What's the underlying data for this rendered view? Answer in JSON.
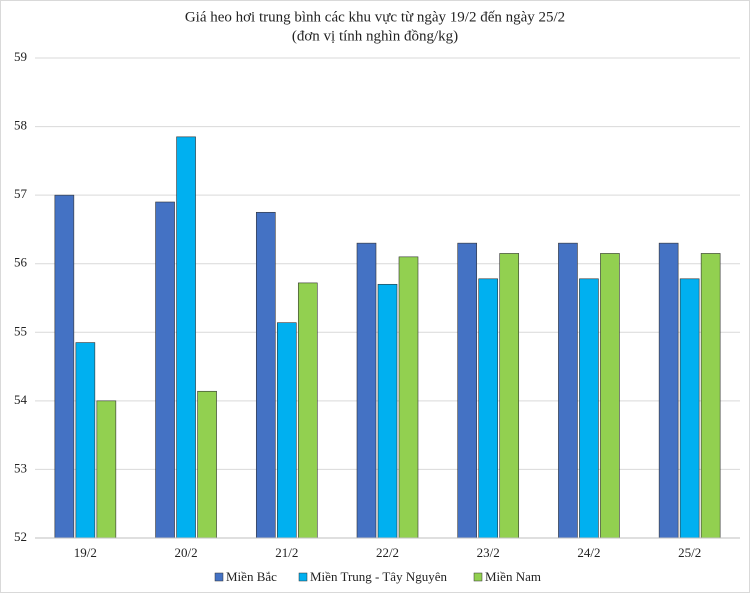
{
  "chart_data": {
    "type": "bar",
    "title": "Giá heo hơi trung bình các khu vực từ ngày 19/2 đến ngày 25/2",
    "subtitle": "(đơn vị tính nghìn đồng/kg)",
    "categories": [
      "19/2",
      "20/2",
      "21/2",
      "22/2",
      "23/2",
      "24/2",
      "25/2"
    ],
    "series": [
      {
        "name": "Miền Bắc",
        "color": "#4472c4",
        "values": [
          57.0,
          56.9,
          56.75,
          56.3,
          56.3,
          56.3,
          56.3
        ]
      },
      {
        "name": "Miền Trung - Tây Nguyên",
        "color": "#00b0f0",
        "values": [
          54.85,
          57.85,
          55.14,
          55.7,
          55.78,
          55.78,
          55.78
        ]
      },
      {
        "name": "Miền Nam",
        "color": "#92d050",
        "values": [
          54.0,
          54.14,
          55.72,
          56.1,
          56.15,
          56.15,
          56.15
        ]
      }
    ],
    "ylim": [
      52,
      59
    ],
    "yticks": [
      52,
      53,
      54,
      55,
      56,
      57,
      58,
      59
    ],
    "grid": true
  }
}
